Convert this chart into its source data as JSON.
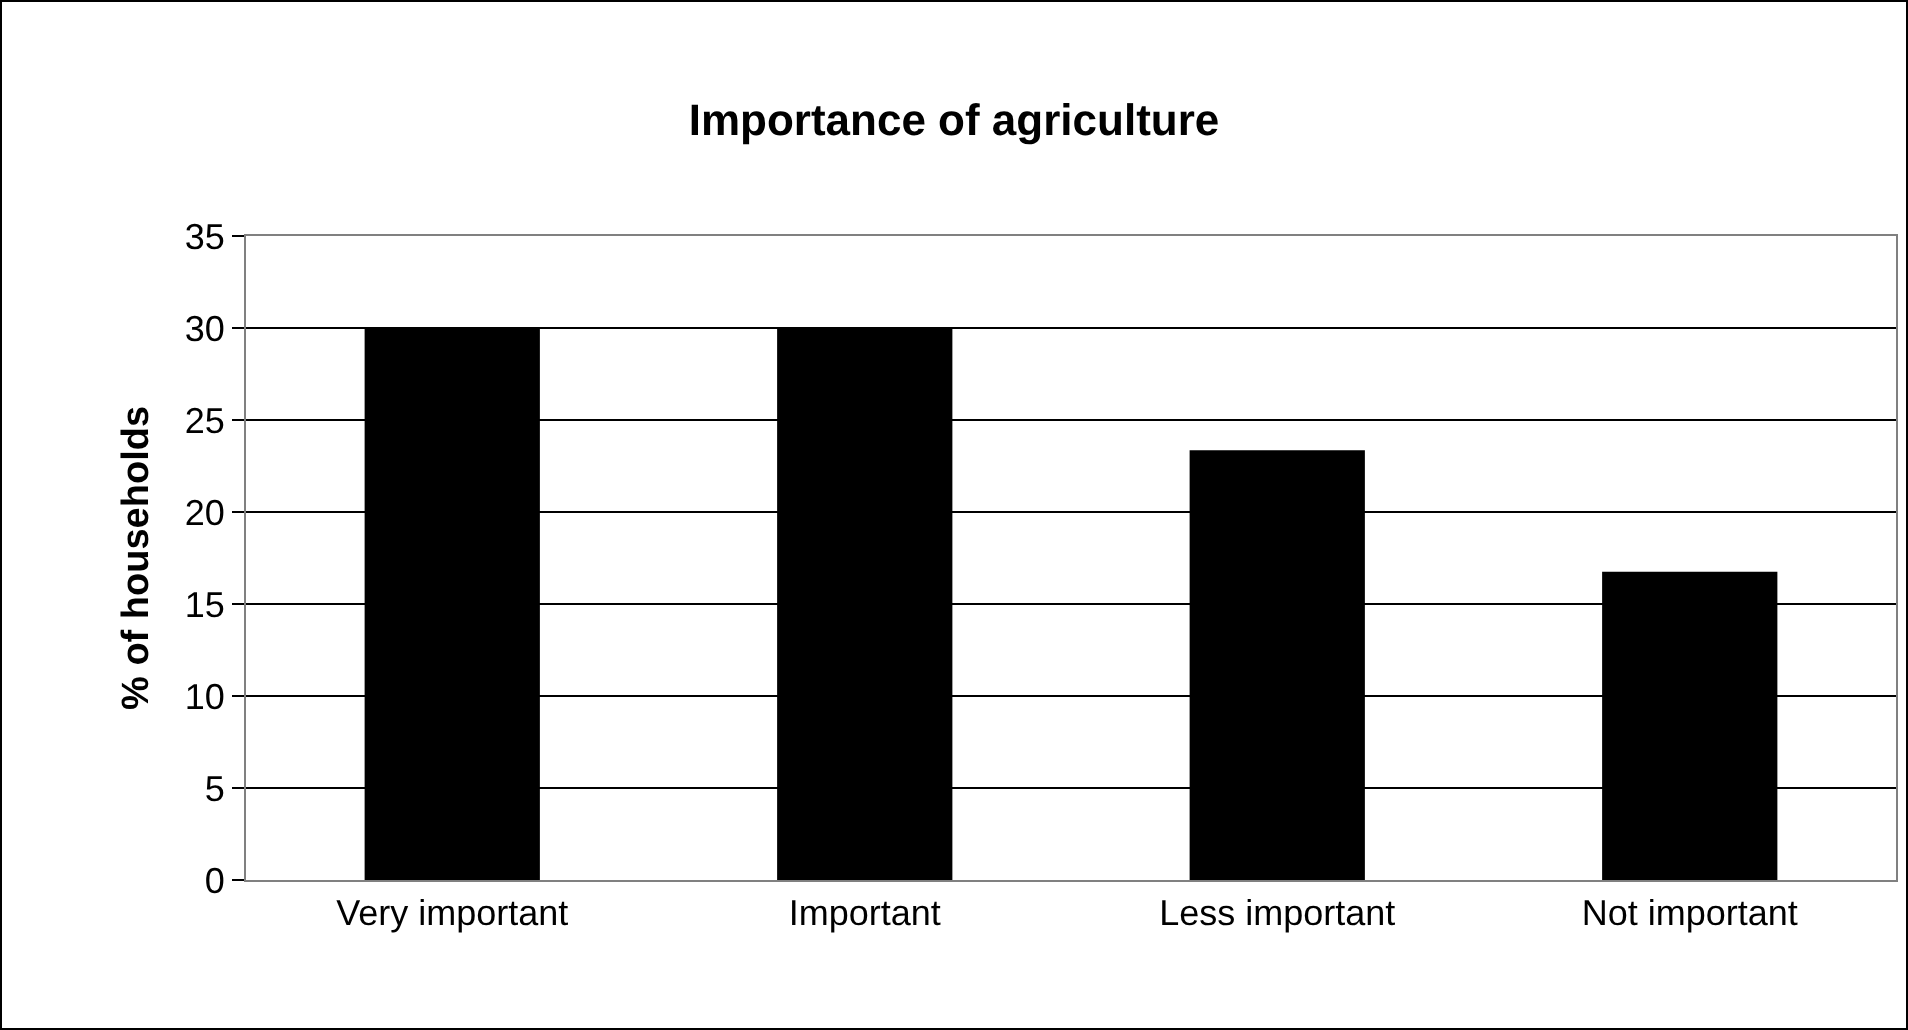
{
  "chart_data": {
    "type": "bar",
    "title": "Importance of agriculture",
    "ylabel": "% of households",
    "categories": [
      "Very important",
      "Important",
      "Less important",
      "Not important"
    ],
    "values": [
      30,
      30,
      23.3,
      16.7
    ],
    "color": "#000000",
    "ylim": [
      0,
      35
    ],
    "yticks": [
      0,
      5,
      10,
      15,
      20,
      25,
      30,
      35
    ],
    "grid": "y"
  }
}
